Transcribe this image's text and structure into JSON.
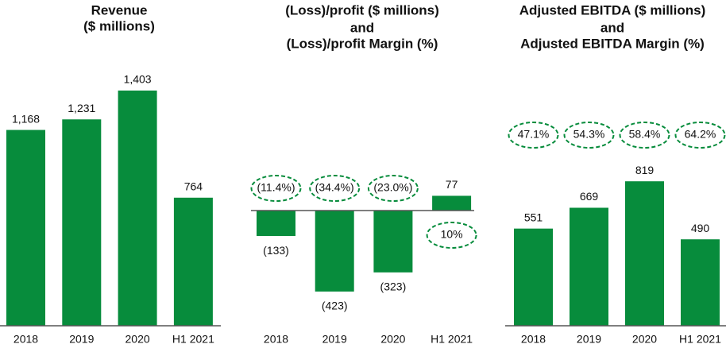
{
  "chart_data": [
    {
      "type": "bar",
      "title": [
        "Revenue",
        "($ millions)"
      ],
      "categories": [
        "2018",
        "2019",
        "2020",
        "H1 2021"
      ],
      "values": [
        1168,
        1231,
        1403,
        764
      ],
      "value_labels": [
        "1,168",
        "1,231",
        "1,403",
        "764"
      ],
      "color": "#078c3c"
    },
    {
      "type": "bar",
      "title": [
        "(Loss)/profit ($ millions)",
        "and",
        "(Loss)/profit Margin (%)"
      ],
      "categories": [
        "2018",
        "2019",
        "2020",
        "H1 2021"
      ],
      "values": [
        -133,
        -423,
        -323,
        77
      ],
      "value_labels": [
        "(133)",
        "(423)",
        "(323)",
        "77"
      ],
      "margins": {
        "values": [
          -11.4,
          -34.4,
          -23.0,
          10
        ],
        "value_labels": [
          "(11.4%)",
          "(34.4%)",
          "(23.0%)",
          "10%"
        ]
      },
      "color": "#078c3c"
    },
    {
      "type": "bar",
      "title": [
        "Adjusted EBITDA ($ millions)",
        "and",
        "Adjusted EBITDA Margin (%)"
      ],
      "categories": [
        "2018",
        "2019",
        "2020",
        "H1 2021"
      ],
      "values": [
        551,
        669,
        819,
        490
      ],
      "margins": {
        "values": [
          47.1,
          54.3,
          58.4,
          64.2
        ],
        "value_labels": [
          "47.1%",
          "54.3%",
          "58.4%",
          "64.2%"
        ]
      },
      "color": "#078c3c"
    }
  ]
}
